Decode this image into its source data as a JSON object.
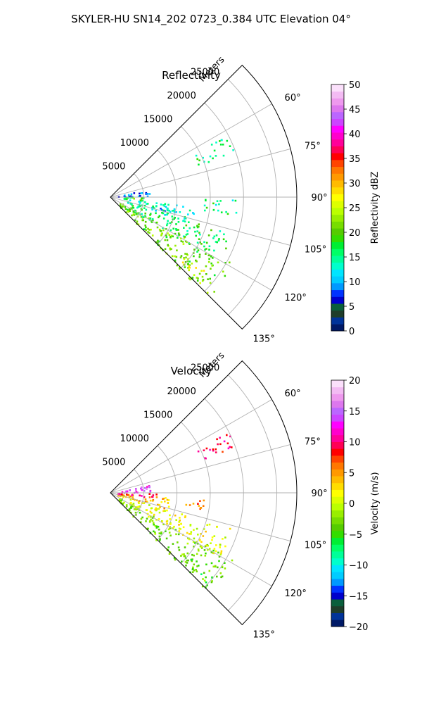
{
  "figure": {
    "suptitle": "SKYLER-HU  SN14_202  0723_0.384 UTC Elevation 04°"
  },
  "chart_data": [
    {
      "type": "heatmap",
      "subtype": "polar-sector",
      "title": "Reflectivity",
      "radial_label": "Meters",
      "radial_ticks": [
        5000,
        10000,
        15000,
        20000,
        25000
      ],
      "radial_tick_labels": [
        "5000",
        "10000",
        "15000",
        "20000",
        "25000"
      ],
      "r_max": 28000,
      "angle_range": [
        45,
        135
      ],
      "angle_ticks": [
        60,
        75,
        90,
        105,
        120,
        135
      ],
      "angle_tick_labels": [
        "60°",
        "75°",
        "90°",
        "105°",
        "120°",
        "135°"
      ],
      "grid": true,
      "colorbar": {
        "label": "Reflectivity dBZ",
        "range": [
          0,
          50
        ],
        "ticks": [
          0,
          5,
          10,
          15,
          20,
          25,
          30,
          35,
          40,
          45,
          50
        ],
        "tick_labels": [
          "0",
          "5",
          "10",
          "15",
          "20",
          "25",
          "30",
          "35",
          "40",
          "45",
          "50"
        ]
      },
      "echo_regions": [
        {
          "az": [
            118,
            136
          ],
          "r": [
            1500,
            21000
          ],
          "value": 21
        },
        {
          "az": [
            106,
            122
          ],
          "r": [
            3000,
            19000
          ],
          "value": 17
        },
        {
          "az": [
            96,
            108
          ],
          "r": [
            2500,
            12000
          ],
          "value": 14
        },
        {
          "az": [
            100,
            104
          ],
          "r": [
            6000,
            13000
          ],
          "value": 11
        },
        {
          "az": [
            78,
            88
          ],
          "r": [
            800,
            6000
          ],
          "value": 9
        },
        {
          "az": [
            88,
            96
          ],
          "r": [
            500,
            5000
          ],
          "value": 19
        },
        {
          "az": [
            128,
            134
          ],
          "r": [
            14000,
            20000
          ],
          "value": 25
        },
        {
          "az": [
            62,
            70
          ],
          "r": [
            14000,
            20000
          ],
          "value": 16
        },
        {
          "az": [
            90,
            98
          ],
          "r": [
            14000,
            19000
          ],
          "value": 15
        }
      ]
    },
    {
      "type": "heatmap",
      "subtype": "polar-sector",
      "title": "Velocity",
      "radial_label": "Meters",
      "radial_ticks": [
        5000,
        10000,
        15000,
        20000,
        25000
      ],
      "radial_tick_labels": [
        "5000",
        "10000",
        "15000",
        "20000",
        "25000"
      ],
      "r_max": 28000,
      "angle_range": [
        45,
        135
      ],
      "angle_ticks": [
        60,
        75,
        90,
        105,
        120,
        135
      ],
      "angle_tick_labels": [
        "60°",
        "75°",
        "90°",
        "105°",
        "120°",
        "135°"
      ],
      "grid": true,
      "colorbar": {
        "label": "Velocity (m/s)",
        "range": [
          -20,
          20
        ],
        "ticks": [
          -20,
          -15,
          -10,
          -5,
          0,
          5,
          10,
          15,
          20
        ],
        "tick_labels": [
          "−20",
          "−15",
          "−10",
          "−5",
          "0",
          "5",
          "10",
          "15",
          "20"
        ]
      },
      "echo_regions": [
        {
          "az": [
            118,
            136
          ],
          "r": [
            1500,
            21000
          ],
          "value": -3
        },
        {
          "az": [
            106,
            122
          ],
          "r": [
            3000,
            19000
          ],
          "value": 1
        },
        {
          "az": [
            94,
            106
          ],
          "r": [
            1000,
            9000
          ],
          "value": 4
        },
        {
          "az": [
            90,
            96
          ],
          "r": [
            800,
            7000
          ],
          "value": 9
        },
        {
          "az": [
            78,
            88
          ],
          "r": [
            1000,
            6000
          ],
          "value": 14
        },
        {
          "az": [
            128,
            134
          ],
          "r": [
            14000,
            20000
          ],
          "value": -5
        },
        {
          "az": [
            92,
            100
          ],
          "r": [
            11000,
            14000
          ],
          "value": 6
        },
        {
          "az": [
            62,
            70
          ],
          "r": [
            14000,
            20000
          ],
          "value": 10
        }
      ]
    }
  ],
  "colors": {
    "axis": "#000000",
    "grid": "#b0b0b0",
    "reflectivity_scale": [
      "#001966",
      "#003399",
      "#1f3d2a",
      "#0a5f3c",
      "#0000cc",
      "#0033ff",
      "#0099ff",
      "#00ccff",
      "#00e5ff",
      "#00ffcc",
      "#00ff99",
      "#00ff66",
      "#00ee33",
      "#33dd00",
      "#55cc00",
      "#77dd00",
      "#99ee00",
      "#bbff00",
      "#ddff00",
      "#ffff00",
      "#ffdd00",
      "#ffbb00",
      "#ff9900",
      "#ff7700",
      "#ff4400",
      "#ff0000",
      "#ff0055",
      "#ff0099",
      "#ff00cc",
      "#ff00ff",
      "#cc44ff",
      "#bb66ff",
      "#dd77ee",
      "#ee99ee",
      "#f3bbf3",
      "#fbe0fb"
    ],
    "velocity_scale": [
      "#001966",
      "#003399",
      "#1f3d2a",
      "#0a5f3c",
      "#0000cc",
      "#0033ff",
      "#0099ff",
      "#00ccff",
      "#00e5ff",
      "#00ffcc",
      "#00ff99",
      "#00ff66",
      "#00ee33",
      "#33dd00",
      "#55cc00",
      "#77dd00",
      "#99ee00",
      "#bbff00",
      "#ddff00",
      "#ffff00",
      "#ffdd00",
      "#ffbb00",
      "#ff9900",
      "#ff7700",
      "#ff4400",
      "#ff0000",
      "#ff0055",
      "#ff0099",
      "#ff00cc",
      "#ff00ff",
      "#cc44ff",
      "#bb66ff",
      "#dd77ee",
      "#ee99ee",
      "#f3bbf3",
      "#fbe0fb"
    ]
  }
}
